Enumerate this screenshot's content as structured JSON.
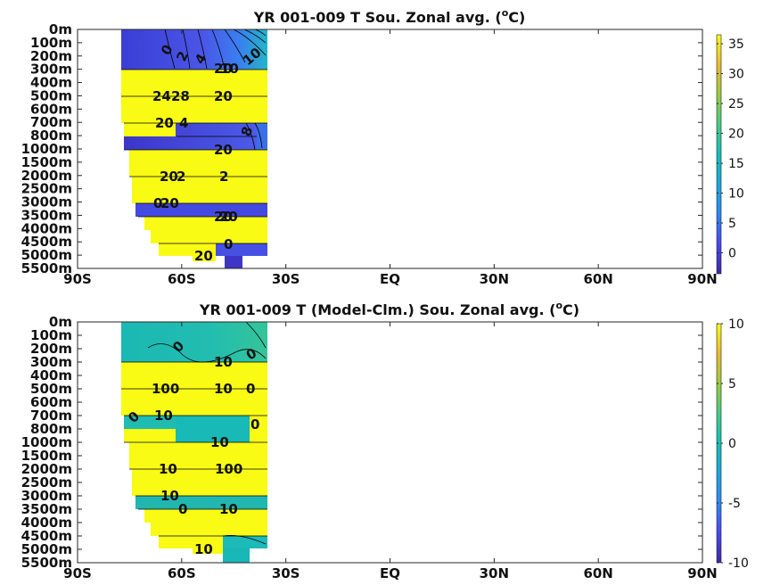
{
  "chart_data": [
    {
      "type": "heatmap",
      "title_main": "YR 001-009 T Sou. Zonal avg. (",
      "title_sup": "o",
      "title_tail": "C)",
      "xticks": [
        "90S",
        "60S",
        "30S",
        "EQ",
        "30N",
        "60N",
        "90N"
      ],
      "yticks": [
        "0m",
        "100m",
        "200m",
        "300m",
        "400m",
        "500m",
        "600m",
        "700m",
        "800m",
        "1000m",
        "1500m",
        "2000m",
        "2500m",
        "3000m",
        "3500m",
        "4000m",
        "4500m",
        "5000m",
        "5500m"
      ],
      "colorbar_ticks": [
        "35",
        "30",
        "25",
        "20",
        "15",
        "10",
        "5",
        "0"
      ],
      "colorbar_range": [
        -3.5,
        36.5
      ],
      "grid": false,
      "contour_labels": [
        "0",
        "2",
        "4",
        "10",
        "10",
        "20",
        "24",
        "28",
        "20",
        "4",
        "8",
        "20",
        "20",
        "20",
        "2",
        "2",
        "20",
        "0",
        "20",
        "20",
        "0",
        "20"
      ]
    },
    {
      "type": "heatmap",
      "title_main": "YR 001-009 T (Model-Clm.) Sou. Zonal avg. (",
      "title_sup": "o",
      "title_tail": "C)",
      "xticks": [
        "90S",
        "60S",
        "30S",
        "EQ",
        "30N",
        "60N",
        "90N"
      ],
      "yticks": [
        "0m",
        "100m",
        "200m",
        "300m",
        "400m",
        "500m",
        "600m",
        "700m",
        "800m",
        "1000m",
        "1500m",
        "2000m",
        "2500m",
        "3000m",
        "3500m",
        "4000m",
        "4500m",
        "5000m",
        "5500m"
      ],
      "colorbar_ticks": [
        "10",
        "5",
        "0",
        "-5",
        "-10"
      ],
      "colorbar_range": [
        -10,
        10
      ],
      "grid": false,
      "contour_labels": [
        "0",
        "0",
        "10",
        "100",
        "10",
        "0",
        "0",
        "10",
        "0",
        "10",
        "10",
        "100",
        "10",
        "0",
        "10",
        "10"
      ]
    }
  ]
}
